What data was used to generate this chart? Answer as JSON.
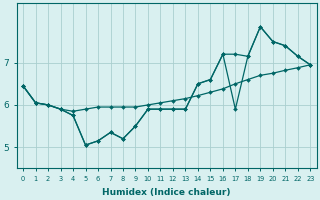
{
  "xlabel": "Humidex (Indice chaleur)",
  "xlim_min": -0.5,
  "xlim_max": 23.5,
  "ylim_min": 4.5,
  "ylim_max": 8.4,
  "background_color": "#d9f0f0",
  "grid_color": "#aacfcf",
  "line_color": "#006666",
  "x_ticks": [
    0,
    1,
    2,
    3,
    4,
    5,
    6,
    7,
    8,
    9,
    10,
    11,
    12,
    13,
    14,
    15,
    16,
    17,
    18,
    19,
    20,
    21,
    22,
    23
  ],
  "y_ticks": [
    5,
    6,
    7
  ],
  "series_zigzag": [
    6.45,
    6.05,
    6.0,
    5.9,
    5.75,
    5.05,
    5.15,
    5.35,
    5.2,
    5.5,
    5.9,
    5.9,
    5.9,
    5.9,
    6.5,
    6.6,
    7.2,
    5.9,
    7.15,
    7.85,
    7.5,
    7.4,
    7.15,
    6.95
  ],
  "series_upper": [
    6.45,
    6.05,
    6.0,
    5.9,
    5.75,
    5.05,
    5.15,
    5.35,
    5.2,
    5.5,
    5.9,
    5.9,
    5.9,
    5.9,
    6.5,
    6.6,
    7.2,
    7.2,
    7.15,
    7.85,
    7.5,
    7.4,
    7.15,
    6.95
  ],
  "series_trend": [
    6.45,
    6.05,
    6.0,
    5.9,
    5.85,
    5.9,
    5.95,
    5.95,
    5.95,
    5.95,
    6.0,
    6.05,
    6.1,
    6.15,
    6.22,
    6.3,
    6.38,
    6.5,
    6.6,
    6.7,
    6.75,
    6.82,
    6.88,
    6.95
  ]
}
